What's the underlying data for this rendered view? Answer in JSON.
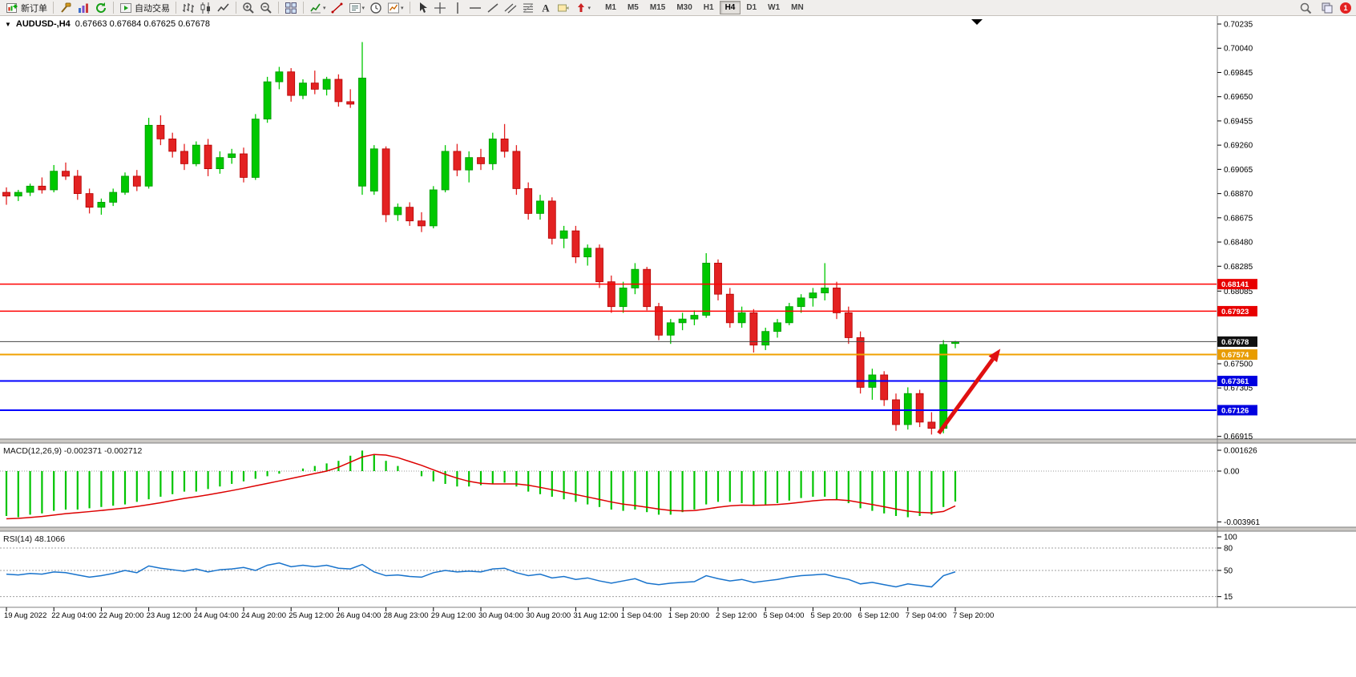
{
  "toolbar": {
    "groups": [
      {
        "name": "trade",
        "items": [
          {
            "icon": "new-order",
            "label": "新订单"
          }
        ]
      },
      {
        "name": "panels",
        "items": [
          {
            "icon": "hammer"
          },
          {
            "icon": "profiles"
          },
          {
            "icon": "refresh"
          }
        ]
      },
      {
        "name": "autotrade",
        "items": [
          {
            "icon": "autotrading",
            "label": "自动交易"
          }
        ]
      },
      {
        "name": "chart-types",
        "items": [
          {
            "icon": "bar-chart"
          },
          {
            "icon": "candlestick-chart"
          },
          {
            "icon": "line-chart"
          }
        ]
      },
      {
        "name": "zoom",
        "items": [
          {
            "icon": "zoom-in"
          },
          {
            "icon": "zoom-out"
          }
        ]
      },
      {
        "name": "windows",
        "items": [
          {
            "icon": "tile-windows"
          }
        ]
      },
      {
        "name": "chart-tools",
        "items": [
          {
            "icon": "indicators",
            "dropdown": true
          },
          {
            "icon": "line-studies"
          },
          {
            "icon": "periods",
            "dropdown": true
          },
          {
            "icon": "clock"
          },
          {
            "icon": "templates",
            "dropdown": true
          }
        ]
      },
      {
        "name": "drawing-tools",
        "items": [
          {
            "icon": "cursor"
          },
          {
            "icon": "crosshair"
          },
          {
            "icon": "vertical-line"
          },
          {
            "icon": "horizontal-line"
          },
          {
            "icon": "trendline"
          },
          {
            "icon": "channel"
          },
          {
            "icon": "fibonacci"
          },
          {
            "icon": "text"
          },
          {
            "icon": "text-label"
          },
          {
            "icon": "arrows",
            "dropdown": true
          }
        ]
      }
    ],
    "timeframes": [
      "M1",
      "M5",
      "M15",
      "M30",
      "H1",
      "H4",
      "D1",
      "W1",
      "MN"
    ],
    "active_timeframe": "H4",
    "notification_count": "1"
  },
  "chart": {
    "title_symbol": "AUDUSD-,H4",
    "title_ohlc": "0.67663 0.67684 0.67625 0.67678"
  },
  "chart_data": {
    "type": "candlestick",
    "symbol_period": "AUDUSD-,H4",
    "current_bar": {
      "open": 0.67663,
      "high": 0.67684,
      "low": 0.67625,
      "close": 0.67678,
      "bid": 0.67678
    },
    "colors": {
      "up": "#00C800",
      "up_stroke": "#009600",
      "down": "#E32222",
      "down_stroke": "#B50000"
    },
    "y_ticks": [
      "0.70235",
      "0.70040",
      "0.69845",
      "0.69650",
      "0.69455",
      "0.69260",
      "0.69065",
      "0.68870",
      "0.68675",
      "0.68480",
      "0.68285",
      "0.68085",
      "0.67890",
      "0.67695",
      "0.67500",
      "0.67305",
      "0.67110",
      "0.66915"
    ],
    "x_labels": [
      "19 Aug 2022",
      "22 Aug 04:00",
      "22 Aug 20:00",
      "23 Aug 12:00",
      "24 Aug 04:00",
      "24 Aug 20:00",
      "25 Aug 12:00",
      "26 Aug 04:00",
      "28 Aug 23:00",
      "29 Aug 12:00",
      "30 Aug 04:00",
      "30 Aug 20:00",
      "31 Aug 12:00",
      "1 Sep 04:00",
      "1 Sep 20:00",
      "2 Sep 12:00",
      "5 Sep 04:00",
      "5 Sep 20:00",
      "6 Sep 12:00",
      "7 Sep 04:00",
      "7 Sep 20:00"
    ],
    "x_label_every_n_bars": 4,
    "candles": [
      [
        0.6888,
        0.6892,
        0.6878,
        0.6885
      ],
      [
        0.6885,
        0.689,
        0.6881,
        0.6888
      ],
      [
        0.6888,
        0.6895,
        0.6885,
        0.6893
      ],
      [
        0.6893,
        0.69,
        0.6887,
        0.689
      ],
      [
        0.689,
        0.691,
        0.6888,
        0.6905
      ],
      [
        0.6905,
        0.6912,
        0.6898,
        0.6901
      ],
      [
        0.6901,
        0.6906,
        0.6882,
        0.6887
      ],
      [
        0.6887,
        0.6891,
        0.6871,
        0.6876
      ],
      [
        0.6876,
        0.6883,
        0.687,
        0.688
      ],
      [
        0.688,
        0.6891,
        0.6877,
        0.6888
      ],
      [
        0.6888,
        0.6904,
        0.6886,
        0.6901
      ],
      [
        0.6901,
        0.6906,
        0.6889,
        0.6893
      ],
      [
        0.6893,
        0.6948,
        0.6891,
        0.6942
      ],
      [
        0.6942,
        0.695,
        0.6926,
        0.6931
      ],
      [
        0.6931,
        0.6936,
        0.6916,
        0.6921
      ],
      [
        0.6921,
        0.6927,
        0.6906,
        0.6911
      ],
      [
        0.6911,
        0.6929,
        0.6909,
        0.6926
      ],
      [
        0.6926,
        0.6931,
        0.6901,
        0.6907
      ],
      [
        0.6907,
        0.6921,
        0.6903,
        0.6916
      ],
      [
        0.6916,
        0.6923,
        0.6911,
        0.6919
      ],
      [
        0.6919,
        0.6924,
        0.6896,
        0.69
      ],
      [
        0.69,
        0.6951,
        0.6898,
        0.6947
      ],
      [
        0.6947,
        0.6981,
        0.6944,
        0.6977
      ],
      [
        0.6977,
        0.6989,
        0.6971,
        0.6985
      ],
      [
        0.6985,
        0.6988,
        0.6961,
        0.6966
      ],
      [
        0.6966,
        0.6979,
        0.6963,
        0.6976
      ],
      [
        0.6976,
        0.6986,
        0.6967,
        0.6971
      ],
      [
        0.6971,
        0.6981,
        0.6966,
        0.6979
      ],
      [
        0.6979,
        0.6983,
        0.6957,
        0.6961
      ],
      [
        0.6961,
        0.6971,
        0.6956,
        0.6959
      ],
      [
        0.6893,
        0.7009,
        0.6886,
        0.698
      ],
      [
        0.6889,
        0.6926,
        0.6886,
        0.6923
      ],
      [
        0.6923,
        0.6925,
        0.6864,
        0.687
      ],
      [
        0.687,
        0.6879,
        0.6865,
        0.6876
      ],
      [
        0.6876,
        0.688,
        0.6861,
        0.6865
      ],
      [
        0.6865,
        0.6872,
        0.6856,
        0.6861
      ],
      [
        0.6861,
        0.6893,
        0.6859,
        0.689
      ],
      [
        0.689,
        0.6926,
        0.6888,
        0.6921
      ],
      [
        0.6921,
        0.6927,
        0.6901,
        0.6906
      ],
      [
        0.6906,
        0.6921,
        0.6896,
        0.6916
      ],
      [
        0.6916,
        0.6923,
        0.6906,
        0.6911
      ],
      [
        0.6911,
        0.6936,
        0.6906,
        0.6931
      ],
      [
        0.6931,
        0.6943,
        0.6916,
        0.6921
      ],
      [
        0.6921,
        0.6926,
        0.6886,
        0.6891
      ],
      [
        0.6891,
        0.6896,
        0.6866,
        0.6871
      ],
      [
        0.6871,
        0.6886,
        0.6866,
        0.6881
      ],
      [
        0.6881,
        0.6884,
        0.6846,
        0.6851
      ],
      [
        0.6851,
        0.6861,
        0.6843,
        0.6857
      ],
      [
        0.6857,
        0.6861,
        0.6831,
        0.6836
      ],
      [
        0.6836,
        0.6846,
        0.6829,
        0.6843
      ],
      [
        0.6843,
        0.6846,
        0.6811,
        0.6816
      ],
      [
        0.6816,
        0.6821,
        0.6791,
        0.6796
      ],
      [
        0.6796,
        0.6816,
        0.6791,
        0.6811
      ],
      [
        0.6811,
        0.6831,
        0.6806,
        0.6826
      ],
      [
        0.6826,
        0.6828,
        0.6793,
        0.6796
      ],
      [
        0.6796,
        0.6799,
        0.6769,
        0.6773
      ],
      [
        0.6773,
        0.6786,
        0.6766,
        0.6783
      ],
      [
        0.6783,
        0.6791,
        0.6777,
        0.6786
      ],
      [
        0.6786,
        0.6793,
        0.6781,
        0.6789
      ],
      [
        0.6789,
        0.6839,
        0.6787,
        0.6831
      ],
      [
        0.6831,
        0.6834,
        0.6801,
        0.6806
      ],
      [
        0.6806,
        0.6811,
        0.6779,
        0.6783
      ],
      [
        0.6783,
        0.6796,
        0.6779,
        0.6791
      ],
      [
        0.6791,
        0.6794,
        0.6759,
        0.6765
      ],
      [
        0.6765,
        0.6779,
        0.6761,
        0.6776
      ],
      [
        0.6776,
        0.6786,
        0.6771,
        0.6783
      ],
      [
        0.6783,
        0.6799,
        0.6781,
        0.6796
      ],
      [
        0.6796,
        0.6806,
        0.6791,
        0.6803
      ],
      [
        0.6803,
        0.6811,
        0.6796,
        0.6807
      ],
      [
        0.6807,
        0.6831,
        0.6801,
        0.6811
      ],
      [
        0.6811,
        0.6816,
        0.6786,
        0.6791
      ],
      [
        0.6791,
        0.6796,
        0.6766,
        0.6771
      ],
      [
        0.6771,
        0.6776,
        0.6726,
        0.6731
      ],
      [
        0.6731,
        0.6746,
        0.6721,
        0.6741
      ],
      [
        0.6741,
        0.6744,
        0.6716,
        0.6721
      ],
      [
        0.6721,
        0.6726,
        0.6696,
        0.6701
      ],
      [
        0.6701,
        0.6731,
        0.6697,
        0.6726
      ],
      [
        0.6726,
        0.6729,
        0.6699,
        0.6703
      ],
      [
        0.6703,
        0.6711,
        0.6693,
        0.6698
      ],
      [
        0.6698,
        0.6769,
        0.6694,
        0.67655
      ],
      [
        0.67663,
        0.67684,
        0.67625,
        0.67678
      ]
    ],
    "hlines": [
      {
        "price": 0.68141,
        "label": "0.68141",
        "color": "#FF0000",
        "width": 1.5,
        "label_bg": "#E80000"
      },
      {
        "price": 0.67923,
        "label": "0.67923",
        "color": "#FF0000",
        "width": 1.5,
        "label_bg": "#E80000"
      },
      {
        "price": 0.67678,
        "label": "0.67678",
        "color": "#444444",
        "width": 1,
        "label_bg": "#111111"
      },
      {
        "price": 0.67574,
        "label": "0.67574",
        "color": "#F0A000",
        "width": 2,
        "label_bg": "#E89C00"
      },
      {
        "price": 0.67361,
        "label": "0.67361",
        "color": "#0000FF",
        "width": 2,
        "label_bg": "#0000E0"
      },
      {
        "price": 0.67126,
        "label": "0.67126",
        "color": "#0000FF",
        "width": 2,
        "label_bg": "#0000E0"
      }
    ],
    "arrow": {
      "from_bar": 78.6,
      "from_price": 0.6694,
      "to_bar": 83.8,
      "to_price": 0.6762,
      "color": "#E01010"
    },
    "macd": {
      "label": "MACD(12,26,9)",
      "values_text": "-0.002371 -0.002712",
      "y_ticks": [
        "0.001626",
        "0.00",
        "-0.003961"
      ],
      "zero_level": "0.00",
      "hist_color": "#00C400",
      "signal_color": "#DD0000",
      "histogram": [
        -0.0035,
        -0.0036,
        -0.0034,
        -0.0033,
        -0.0031,
        -0.003,
        -0.003,
        -0.0029,
        -0.0028,
        -0.0027,
        -0.0026,
        -0.0024,
        -0.0022,
        -0.002,
        -0.0018,
        -0.0016,
        -0.0016,
        -0.0014,
        -0.0012,
        -0.001,
        -0.0008,
        -0.0006,
        -0.0004,
        -0.0002,
        0.0,
        0.0002,
        0.0004,
        0.0006,
        0.0008,
        0.0012,
        0.0016,
        0.0013,
        0.0008,
        0.0004,
        0.0,
        -0.0004,
        -0.0008,
        -0.001,
        -0.0012,
        -0.0012,
        -0.0011,
        -0.001,
        -0.0009,
        -0.0012,
        -0.0016,
        -0.0018,
        -0.002,
        -0.0022,
        -0.0024,
        -0.0026,
        -0.0028,
        -0.003,
        -0.0031,
        -0.003,
        -0.0032,
        -0.0034,
        -0.0034,
        -0.0032,
        -0.003,
        -0.0026,
        -0.0024,
        -0.0024,
        -0.0025,
        -0.0027,
        -0.0026,
        -0.0025,
        -0.0023,
        -0.0021,
        -0.002,
        -0.002,
        -0.0022,
        -0.0025,
        -0.0029,
        -0.0031,
        -0.0033,
        -0.0035,
        -0.0036,
        -0.0035,
        -0.0034,
        -0.0028,
        -0.002371
      ],
      "signal": [
        -0.00372,
        -0.00369,
        -0.00362,
        -0.00354,
        -0.00343,
        -0.00332,
        -0.00324,
        -0.00316,
        -0.00307,
        -0.00298,
        -0.00288,
        -0.00276,
        -0.00262,
        -0.00247,
        -0.0023,
        -0.00213,
        -0.002,
        -0.00185,
        -0.00169,
        -0.00152,
        -0.00134,
        -0.00115,
        -0.00096,
        -0.00077,
        -0.00058,
        -0.00038,
        -0.00019,
        0.0,
        0.0003,
        0.0007,
        0.0011,
        0.0013,
        0.00125,
        0.00105,
        0.00075,
        0.00045,
        0.0001,
        -0.00025,
        -0.00055,
        -0.0008,
        -0.00095,
        -0.001,
        -0.001,
        -0.001,
        -0.0011,
        -0.00127,
        -0.00145,
        -0.00164,
        -0.00183,
        -0.00202,
        -0.00221,
        -0.00241,
        -0.00258,
        -0.00269,
        -0.00282,
        -0.00296,
        -0.00307,
        -0.0031,
        -0.00308,
        -0.00296,
        -0.00282,
        -0.00271,
        -0.00266,
        -0.00267,
        -0.00265,
        -0.00261,
        -0.00253,
        -0.00243,
        -0.00232,
        -0.00224,
        -0.00223,
        -0.0023,
        -0.00245,
        -0.00261,
        -0.00278,
        -0.00296,
        -0.00312,
        -0.00322,
        -0.00326,
        -0.00315,
        -0.002712
      ]
    },
    "rsi": {
      "label": "RSI(14)",
      "value_text": "48.1066",
      "line_color": "#1873CC",
      "y_tick_labels": [
        "100",
        "80",
        "50",
        "15"
      ],
      "levels": [
        80,
        50,
        15
      ],
      "values": [
        45,
        44,
        46,
        45,
        48,
        47,
        44,
        41,
        43,
        46,
        50,
        47,
        56,
        53,
        51,
        49,
        52,
        48,
        51,
        52,
        54,
        50,
        57,
        60,
        55,
        57,
        55,
        57,
        53,
        52,
        58,
        48,
        43,
        44,
        42,
        41,
        47,
        50,
        48,
        49,
        48,
        52,
        53,
        47,
        43,
        45,
        40,
        42,
        38,
        40,
        36,
        33,
        36,
        39,
        33,
        31,
        33,
        34,
        35,
        43,
        39,
        36,
        38,
        34,
        36,
        38,
        41,
        43,
        44,
        45,
        41,
        38,
        32,
        34,
        31,
        28,
        32,
        30,
        28,
        43,
        48.1
      ]
    }
  }
}
